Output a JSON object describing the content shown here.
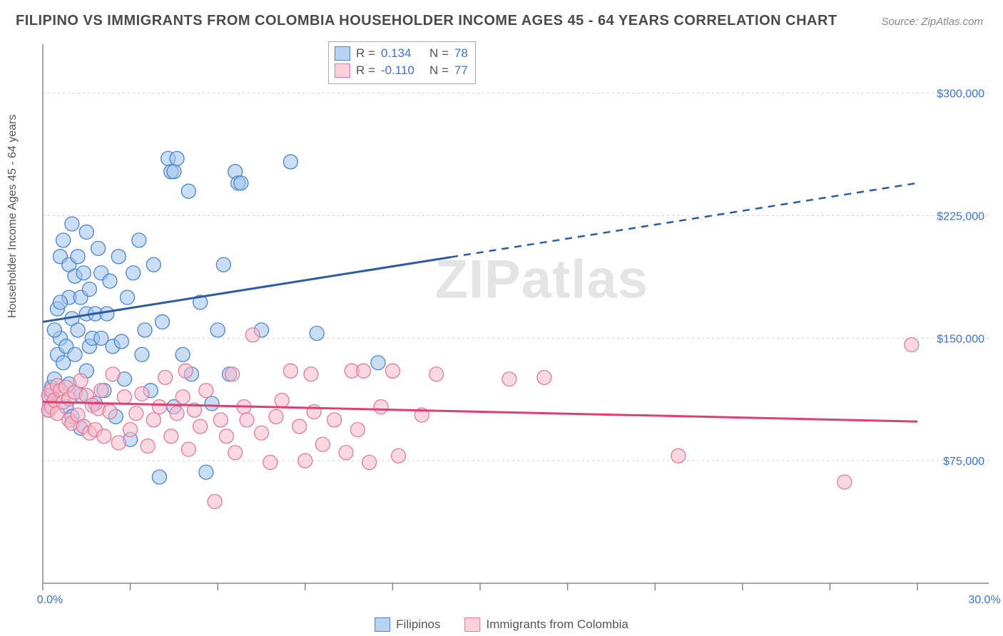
{
  "title": "FILIPINO VS IMMIGRANTS FROM COLOMBIA HOUSEHOLDER INCOME AGES 45 - 64 YEARS CORRELATION CHART",
  "source": "Source: ZipAtlas.com",
  "watermark": {
    "left": "ZIP",
    "right": "atlas"
  },
  "chart": {
    "type": "scatter-with-trendlines",
    "xlim": [
      0,
      30
    ],
    "ylim": [
      0,
      330000
    ],
    "xtick_labels": {
      "min": "0.0%",
      "max": "30.0%"
    },
    "xtick_positions": [
      0,
      3,
      6,
      9,
      12,
      15,
      18,
      21,
      24,
      27,
      30
    ],
    "yticks": [
      {
        "y": 75000,
        "label": "$75,000"
      },
      {
        "y": 150000,
        "label": "$150,000"
      },
      {
        "y": 225000,
        "label": "$225,000"
      },
      {
        "y": 300000,
        "label": "$300,000"
      }
    ],
    "y_axis_label": "Householder Income Ages 45 - 64 years",
    "grid_color": "#d0d0d0",
    "axis_color": "#888888",
    "background_color": "#ffffff",
    "marker_radius": 10,
    "series_a": {
      "name": "Filipinos",
      "color_fill": "#9cc2ec",
      "color_stroke": "#4b84c9",
      "trend_color": "#2e5aa0",
      "r_label": "R =",
      "r_value": "0.134",
      "n_label": "N =",
      "n_value": "78",
      "trend": {
        "x1": 0,
        "y1": 160000,
        "x2": 30,
        "y2": 245000,
        "solid_until_x": 14
      },
      "points": [
        [
          0.3,
          115000
        ],
        [
          0.3,
          120000
        ],
        [
          0.4,
          125000
        ],
        [
          0.5,
          140000
        ],
        [
          0.5,
          168000
        ],
        [
          0.6,
          150000
        ],
        [
          0.6,
          200000
        ],
        [
          0.7,
          135000
        ],
        [
          0.7,
          210000
        ],
        [
          0.8,
          145000
        ],
        [
          0.8,
          108000
        ],
        [
          0.9,
          175000
        ],
        [
          0.9,
          195000
        ],
        [
          1.0,
          162000
        ],
        [
          1.0,
          220000
        ],
        [
          1.1,
          140000
        ],
        [
          1.1,
          188000
        ],
        [
          1.2,
          155000
        ],
        [
          1.2,
          200000
        ],
        [
          1.3,
          115000
        ],
        [
          1.3,
          175000
        ],
        [
          1.4,
          190000
        ],
        [
          1.5,
          165000
        ],
        [
          1.5,
          215000
        ],
        [
          1.6,
          145000
        ],
        [
          1.6,
          180000
        ],
        [
          1.7,
          150000
        ],
        [
          1.8,
          110000
        ],
        [
          1.8,
          165000
        ],
        [
          1.9,
          205000
        ],
        [
          2.0,
          150000
        ],
        [
          2.0,
          190000
        ],
        [
          2.1,
          118000
        ],
        [
          2.2,
          165000
        ],
        [
          2.3,
          185000
        ],
        [
          2.4,
          145000
        ],
        [
          2.5,
          102000
        ],
        [
          2.6,
          200000
        ],
        [
          2.7,
          148000
        ],
        [
          2.8,
          125000
        ],
        [
          2.9,
          175000
        ],
        [
          3.0,
          88000
        ],
        [
          3.1,
          190000
        ],
        [
          3.3,
          210000
        ],
        [
          3.4,
          140000
        ],
        [
          3.5,
          155000
        ],
        [
          3.7,
          118000
        ],
        [
          3.8,
          195000
        ],
        [
          4.0,
          65000
        ],
        [
          4.1,
          160000
        ],
        [
          4.3,
          260000
        ],
        [
          4.4,
          252000
        ],
        [
          4.5,
          252000
        ],
        [
          4.5,
          108000
        ],
        [
          4.6,
          260000
        ],
        [
          4.8,
          140000
        ],
        [
          5.0,
          240000
        ],
        [
          5.1,
          128000
        ],
        [
          5.4,
          172000
        ],
        [
          5.6,
          68000
        ],
        [
          5.8,
          110000
        ],
        [
          6.0,
          155000
        ],
        [
          6.2,
          195000
        ],
        [
          6.4,
          128000
        ],
        [
          6.6,
          252000
        ],
        [
          6.7,
          245000
        ],
        [
          6.8,
          245000
        ],
        [
          7.5,
          155000
        ],
        [
          8.5,
          258000
        ],
        [
          9.4,
          153000
        ],
        [
          11.5,
          135000
        ],
        [
          1.0,
          102000
        ],
        [
          1.3,
          95000
        ],
        [
          1.5,
          130000
        ],
        [
          0.4,
          155000
        ],
        [
          0.6,
          172000
        ],
        [
          0.2,
          106000
        ],
        [
          0.9,
          122000
        ]
      ]
    },
    "series_b": {
      "name": "Immigrants from Colombia",
      "color_fill": "#f6b8c8",
      "color_stroke": "#e67a9a",
      "trend_color": "#e13d72",
      "r_label": "R =",
      "r_value": "-0.110",
      "n_label": "N =",
      "n_value": "77",
      "trend": {
        "x1": 0,
        "y1": 111000,
        "x2": 30,
        "y2": 99000,
        "solid_until_x": 30
      },
      "points": [
        [
          0.2,
          115000
        ],
        [
          0.2,
          106000
        ],
        [
          0.3,
          118000
        ],
        [
          0.3,
          108000
        ],
        [
          0.4,
          112000
        ],
        [
          0.5,
          121000
        ],
        [
          0.5,
          104000
        ],
        [
          0.6,
          118000
        ],
        [
          0.7,
          111000
        ],
        [
          0.8,
          120000
        ],
        [
          0.9,
          100000
        ],
        [
          0.9,
          113000
        ],
        [
          1.0,
          98000
        ],
        [
          1.1,
          117000
        ],
        [
          1.2,
          103000
        ],
        [
          1.3,
          124000
        ],
        [
          1.4,
          96000
        ],
        [
          1.5,
          115000
        ],
        [
          1.6,
          92000
        ],
        [
          1.7,
          109000
        ],
        [
          1.8,
          94000
        ],
        [
          1.9,
          107000
        ],
        [
          2.0,
          118000
        ],
        [
          2.1,
          90000
        ],
        [
          2.3,
          105000
        ],
        [
          2.4,
          128000
        ],
        [
          2.6,
          86000
        ],
        [
          2.8,
          114000
        ],
        [
          3.0,
          94000
        ],
        [
          3.2,
          104000
        ],
        [
          3.4,
          116000
        ],
        [
          3.6,
          84000
        ],
        [
          3.8,
          100000
        ],
        [
          4.0,
          108000
        ],
        [
          4.2,
          126000
        ],
        [
          4.4,
          90000
        ],
        [
          4.6,
          104000
        ],
        [
          4.8,
          114000
        ],
        [
          5.0,
          82000
        ],
        [
          5.2,
          106000
        ],
        [
          5.4,
          96000
        ],
        [
          5.6,
          118000
        ],
        [
          5.9,
          50000
        ],
        [
          6.1,
          100000
        ],
        [
          6.3,
          90000
        ],
        [
          6.6,
          80000
        ],
        [
          6.9,
          108000
        ],
        [
          7.2,
          152000
        ],
        [
          7.5,
          92000
        ],
        [
          7.8,
          74000
        ],
        [
          8.0,
          102000
        ],
        [
          8.2,
          112000
        ],
        [
          8.5,
          130000
        ],
        [
          8.8,
          96000
        ],
        [
          9.0,
          75000
        ],
        [
          9.3,
          105000
        ],
        [
          9.6,
          85000
        ],
        [
          10.0,
          100000
        ],
        [
          10.4,
          80000
        ],
        [
          10.6,
          130000
        ],
        [
          10.8,
          94000
        ],
        [
          11.2,
          74000
        ],
        [
          11.6,
          108000
        ],
        [
          12.0,
          130000
        ],
        [
          12.2,
          78000
        ],
        [
          13.0,
          103000
        ],
        [
          13.5,
          128000
        ],
        [
          16.0,
          125000
        ],
        [
          17.2,
          126000
        ],
        [
          21.8,
          78000
        ],
        [
          27.5,
          62000
        ],
        [
          29.8,
          146000
        ],
        [
          4.9,
          130000
        ],
        [
          6.5,
          128000
        ],
        [
          9.2,
          128000
        ],
        [
          11.0,
          130000
        ],
        [
          7.0,
          100000
        ]
      ]
    }
  },
  "legend": {
    "a": "Filipinos",
    "b": "Immigrants from Colombia"
  }
}
